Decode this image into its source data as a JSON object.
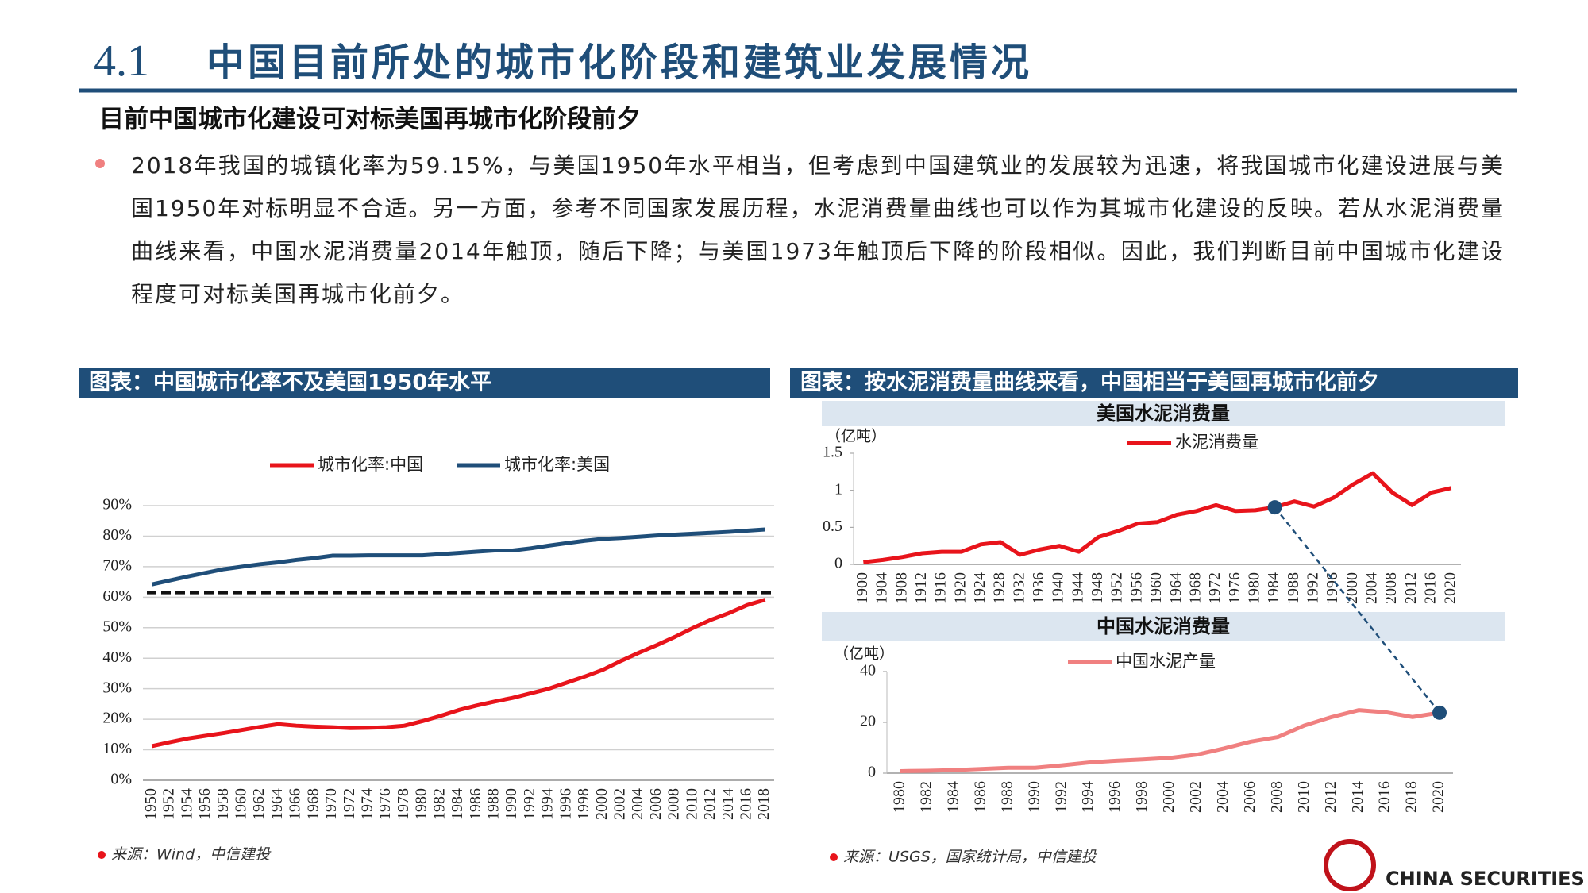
{
  "header": {
    "section_number": "4.1",
    "title": "中国目前所处的城市化阶段和建筑业发展情况",
    "subtitle": "目前中国城市化建设可对标美国再城市化阶段前夕"
  },
  "body": {
    "paragraph": "2018年我国的城镇化率为59.15%，与美国1950年水平相当，但考虑到中国建筑业的发展较为迅速，将我国城市化建设进展与美国1950年对标明显不合适。另一方面，参考不同国家发展历程，水泥消费量曲线也可以作为其城市化建设的反映。若从水泥消费量曲线来看，中国水泥消费量2014年触顶，随后下降；与美国1973年触顶后下降的阶段相似。因此，我们判断目前中国城市化建设程度可对标美国再城市化前夕。"
  },
  "panels": [
    {
      "title": "图表：中国城市化率不及美国1950年水平",
      "source": "来源：Wind，中信建投"
    },
    {
      "title": "图表：按水泥消费量曲线来看，中国相当于美国再城市化前夕",
      "source": "来源：USGS，国家统计局，中信建投"
    }
  ],
  "footer": {
    "logo_text": "CHINA SECURITIES"
  },
  "chart_data": [
    {
      "type": "line",
      "categories": [
        "1950",
        "1952",
        "1954",
        "1956",
        "1958",
        "1960",
        "1962",
        "1964",
        "1966",
        "1968",
        "1970",
        "1972",
        "1974",
        "1976",
        "1978",
        "1980",
        "1982",
        "1984",
        "1986",
        "1988",
        "1990",
        "1992",
        "1994",
        "1996",
        "1998",
        "2000",
        "2002",
        "2004",
        "2006",
        "2008",
        "2010",
        "2012",
        "2014",
        "2016",
        "2018"
      ],
      "series": [
        {
          "name": "城市化率:中国",
          "color": "#e8141b",
          "values": [
            11.2,
            12.5,
            13.7,
            14.6,
            15.5,
            16.5,
            17.5,
            18.4,
            17.9,
            17.6,
            17.4,
            17.1,
            17.2,
            17.4,
            17.9,
            19.4,
            21.1,
            23.0,
            24.5,
            25.8,
            27.0,
            28.5,
            30.0,
            32.0,
            34.0,
            36.2,
            39.1,
            41.8,
            44.3,
            47.0,
            49.9,
            52.6,
            54.8,
            57.4,
            59.15
          ]
        },
        {
          "name": "城市化率:美国",
          "color": "#1f4e79",
          "values": [
            64.2,
            65.5,
            66.8,
            68.0,
            69.2,
            70.0,
            70.8,
            71.4,
            72.2,
            72.8,
            73.6,
            73.6,
            73.7,
            73.7,
            73.7,
            73.7,
            74.1,
            74.5,
            74.9,
            75.3,
            75.3,
            76.0,
            76.9,
            77.7,
            78.5,
            79.1,
            79.4,
            79.8,
            80.2,
            80.5,
            80.8,
            81.1,
            81.4,
            81.8,
            82.2
          ]
        }
      ],
      "reference_line": 61.5,
      "ylim": [
        0,
        90
      ],
      "yticks": [
        {
          "value": 0,
          "label": "0%"
        },
        {
          "value": 10,
          "label": "10%"
        },
        {
          "value": 20,
          "label": "20%"
        },
        {
          "value": 30,
          "label": "30%"
        },
        {
          "value": 40,
          "label": "40%"
        },
        {
          "value": 50,
          "label": "50%"
        },
        {
          "value": 60,
          "label": "60%"
        },
        {
          "value": 70,
          "label": "70%"
        },
        {
          "value": 80,
          "label": "80%"
        },
        {
          "value": 90,
          "label": "90%"
        }
      ],
      "grid": true
    },
    {
      "type": "line",
      "title": "美国水泥消费量",
      "y_unit": "（亿吨）",
      "categories": [
        "1900",
        "1904",
        "1908",
        "1912",
        "1916",
        "1920",
        "1924",
        "1928",
        "1932",
        "1936",
        "1940",
        "1944",
        "1948",
        "1952",
        "1956",
        "1960",
        "1964",
        "1968",
        "1972",
        "1976",
        "1980",
        "1984",
        "1988",
        "1992",
        "1996",
        "2000",
        "2004",
        "2008",
        "2012",
        "2016",
        "2020"
      ],
      "series": [
        {
          "name": "水泥消费量",
          "color": "#e8141b",
          "values": [
            0.03,
            0.06,
            0.1,
            0.15,
            0.17,
            0.17,
            0.27,
            0.3,
            0.13,
            0.2,
            0.25,
            0.17,
            0.37,
            0.45,
            0.55,
            0.57,
            0.67,
            0.72,
            0.8,
            0.72,
            0.73,
            0.77,
            0.85,
            0.78,
            0.9,
            1.08,
            1.23,
            0.97,
            0.8,
            0.97,
            1.03
          ]
        }
      ],
      "ylim": [
        0,
        1.5
      ],
      "yticks": [
        0,
        0.5,
        1,
        1.5
      ],
      "grid": false
    },
    {
      "type": "line",
      "title": "中国水泥消费量",
      "y_unit": "（亿吨）",
      "categories": [
        "1980",
        "1982",
        "1984",
        "1986",
        "1988",
        "1990",
        "1992",
        "1994",
        "1996",
        "1998",
        "2000",
        "2002",
        "2004",
        "2006",
        "2008",
        "2010",
        "2012",
        "2014",
        "2016",
        "2018",
        "2020"
      ],
      "series": [
        {
          "name": "中国水泥产量",
          "color": "#f08080",
          "values": [
            0.8,
            0.95,
            1.2,
            1.66,
            2.1,
            2.1,
            3.1,
            4.2,
            4.9,
            5.4,
            6.0,
            7.3,
            9.7,
            12.4,
            14.2,
            18.8,
            22.1,
            24.8,
            24.0,
            22.1,
            23.8
          ]
        }
      ],
      "ylim": [
        0,
        40
      ],
      "yticks": [
        0,
        20,
        40
      ],
      "grid": false
    }
  ]
}
